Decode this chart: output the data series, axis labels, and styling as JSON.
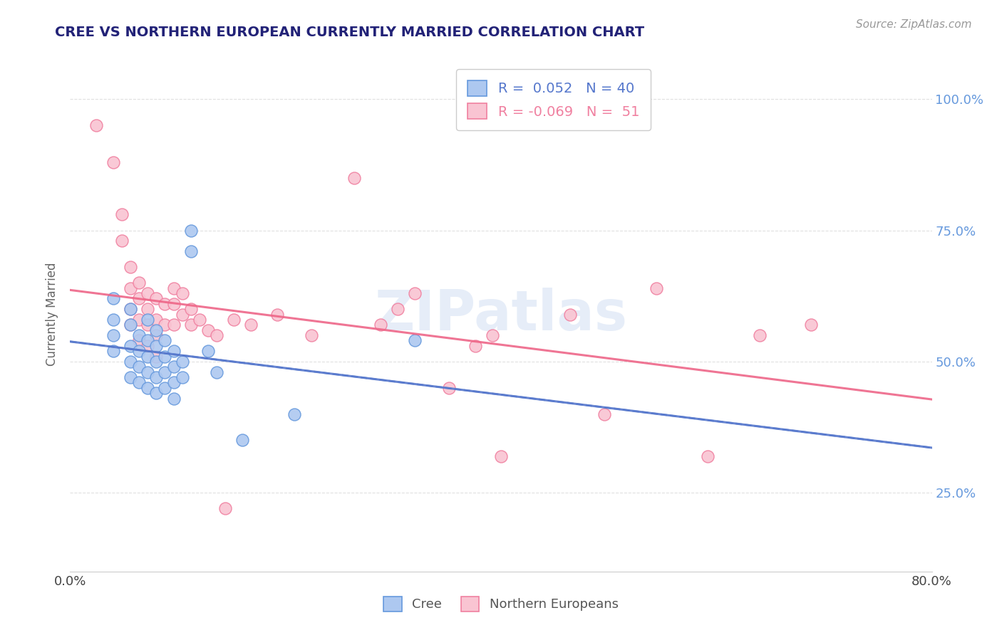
{
  "title": "CREE VS NORTHERN EUROPEAN CURRENTLY MARRIED CORRELATION CHART",
  "source": "Source: ZipAtlas.com",
  "ylabel": "Currently Married",
  "legend_blue": {
    "R": 0.052,
    "N": 40,
    "label": "Cree"
  },
  "legend_pink": {
    "R": -0.069,
    "N": 51,
    "label": "Northern Europeans"
  },
  "blue_color": "#adc8f0",
  "pink_color": "#f9c4d2",
  "blue_edge_color": "#6699dd",
  "pink_edge_color": "#f080a0",
  "blue_line_color": "#5577cc",
  "pink_line_color": "#ee6688",
  "watermark": "ZIPatlas",
  "blue_scatter": [
    [
      0.005,
      0.62
    ],
    [
      0.005,
      0.58
    ],
    [
      0.005,
      0.55
    ],
    [
      0.005,
      0.52
    ],
    [
      0.007,
      0.6
    ],
    [
      0.007,
      0.57
    ],
    [
      0.007,
      0.53
    ],
    [
      0.007,
      0.5
    ],
    [
      0.007,
      0.47
    ],
    [
      0.008,
      0.55
    ],
    [
      0.008,
      0.52
    ],
    [
      0.008,
      0.49
    ],
    [
      0.008,
      0.46
    ],
    [
      0.009,
      0.58
    ],
    [
      0.009,
      0.54
    ],
    [
      0.009,
      0.51
    ],
    [
      0.009,
      0.48
    ],
    [
      0.009,
      0.45
    ],
    [
      0.01,
      0.56
    ],
    [
      0.01,
      0.53
    ],
    [
      0.01,
      0.5
    ],
    [
      0.01,
      0.47
    ],
    [
      0.01,
      0.44
    ],
    [
      0.011,
      0.54
    ],
    [
      0.011,
      0.51
    ],
    [
      0.011,
      0.48
    ],
    [
      0.011,
      0.45
    ],
    [
      0.012,
      0.52
    ],
    [
      0.012,
      0.49
    ],
    [
      0.012,
      0.46
    ],
    [
      0.012,
      0.43
    ],
    [
      0.013,
      0.5
    ],
    [
      0.013,
      0.47
    ],
    [
      0.014,
      0.75
    ],
    [
      0.014,
      0.71
    ],
    [
      0.016,
      0.52
    ],
    [
      0.017,
      0.48
    ],
    [
      0.02,
      0.35
    ],
    [
      0.026,
      0.4
    ],
    [
      0.04,
      0.54
    ]
  ],
  "pink_scatter": [
    [
      0.003,
      0.95
    ],
    [
      0.005,
      0.88
    ],
    [
      0.006,
      0.78
    ],
    [
      0.006,
      0.73
    ],
    [
      0.007,
      0.68
    ],
    [
      0.007,
      0.64
    ],
    [
      0.007,
      0.6
    ],
    [
      0.007,
      0.57
    ],
    [
      0.008,
      0.65
    ],
    [
      0.008,
      0.62
    ],
    [
      0.008,
      0.58
    ],
    [
      0.008,
      0.54
    ],
    [
      0.009,
      0.63
    ],
    [
      0.009,
      0.6
    ],
    [
      0.009,
      0.57
    ],
    [
      0.009,
      0.53
    ],
    [
      0.01,
      0.62
    ],
    [
      0.01,
      0.58
    ],
    [
      0.01,
      0.55
    ],
    [
      0.01,
      0.51
    ],
    [
      0.011,
      0.61
    ],
    [
      0.011,
      0.57
    ],
    [
      0.012,
      0.64
    ],
    [
      0.012,
      0.61
    ],
    [
      0.012,
      0.57
    ],
    [
      0.013,
      0.63
    ],
    [
      0.013,
      0.59
    ],
    [
      0.014,
      0.6
    ],
    [
      0.014,
      0.57
    ],
    [
      0.015,
      0.58
    ],
    [
      0.016,
      0.56
    ],
    [
      0.017,
      0.55
    ],
    [
      0.018,
      0.22
    ],
    [
      0.019,
      0.58
    ],
    [
      0.021,
      0.57
    ],
    [
      0.024,
      0.59
    ],
    [
      0.028,
      0.55
    ],
    [
      0.033,
      0.85
    ],
    [
      0.036,
      0.57
    ],
    [
      0.038,
      0.6
    ],
    [
      0.04,
      0.63
    ],
    [
      0.044,
      0.45
    ],
    [
      0.047,
      0.53
    ],
    [
      0.049,
      0.55
    ],
    [
      0.05,
      0.32
    ],
    [
      0.058,
      0.59
    ],
    [
      0.062,
      0.4
    ],
    [
      0.068,
      0.64
    ],
    [
      0.074,
      0.32
    ],
    [
      0.08,
      0.55
    ],
    [
      0.086,
      0.57
    ]
  ],
  "x_min": 0.0,
  "x_max": 0.1,
  "y_min": 0.1,
  "y_max": 1.08,
  "grid_color": "#e0e0e0",
  "background_color": "#ffffff",
  "title_color": "#222277",
  "source_color": "#999999",
  "ylabel_color": "#666666"
}
